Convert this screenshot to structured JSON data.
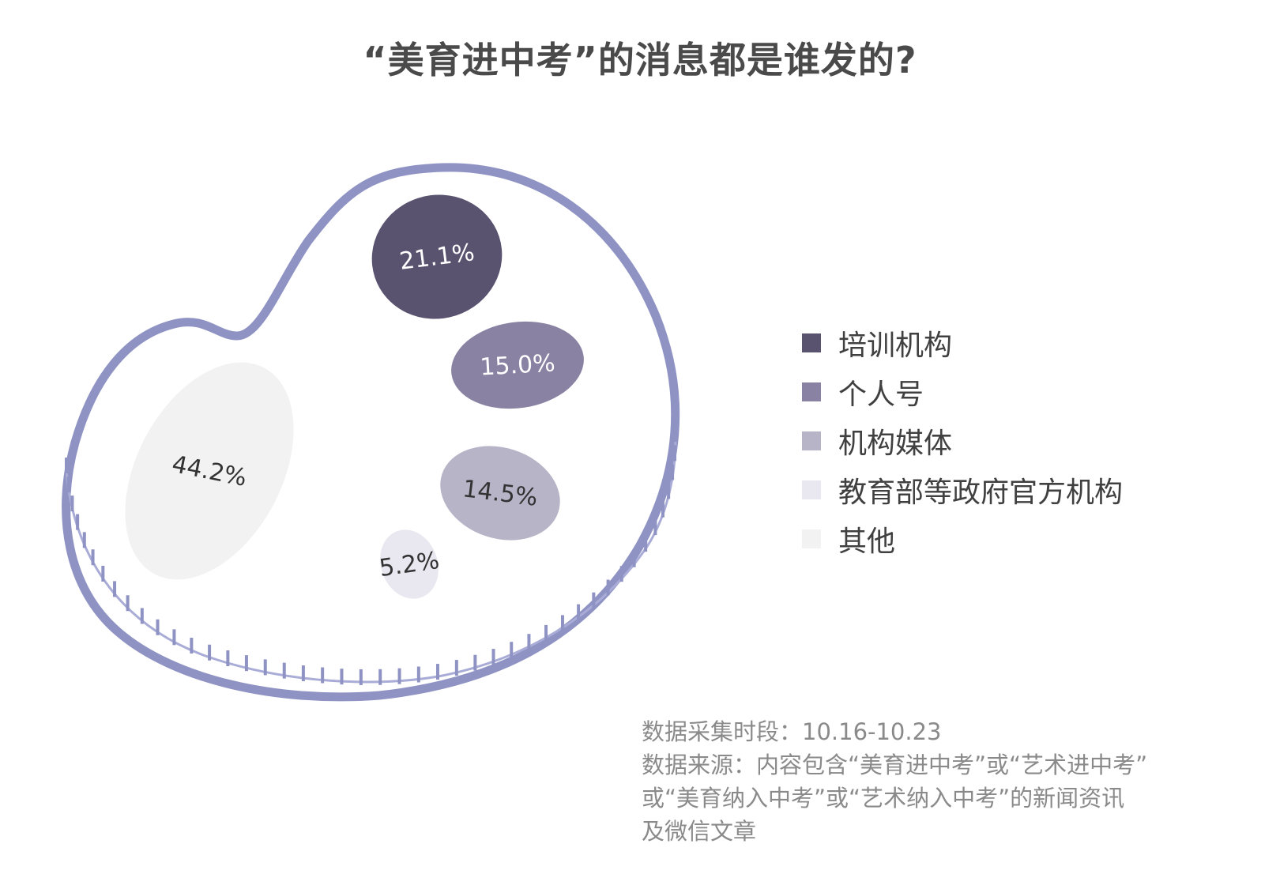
{
  "title": "“美育进中考”的消息都是谁发的?",
  "colors": {
    "outline": "#8f93c4",
    "outline_inner": "#a9acd6"
  },
  "chart_data": {
    "type": "bubble",
    "title": "“美育进中考”的消息都是谁发的?",
    "unit": "%",
    "categories": [
      "培训机构",
      "个人号",
      "机构媒体",
      "教育部等政府官方机构",
      "其他"
    ],
    "values": [
      21.1,
      15.0,
      14.5,
      5.2,
      44.2
    ],
    "labels": [
      "21.1%",
      "15.0%",
      "14.5%",
      "5.2%",
      "44.2%"
    ],
    "colors": [
      "#5a5370",
      "#8a82a2",
      "#b8b4c8",
      "#e9e7ef",
      "#f2f2f2"
    ],
    "label_colors": [
      "#ffffff",
      "#ffffff",
      "#333333",
      "#333333",
      "#333333"
    ],
    "legend_position": "right"
  },
  "notes": [
    "数据采集时段：10.16-10.23",
    "数据来源：内容包含“美育进中考”或“艺术进中考”",
    "或“美育纳入中考”或“艺术纳入中考”的新闻资讯",
    "及微信文章"
  ]
}
